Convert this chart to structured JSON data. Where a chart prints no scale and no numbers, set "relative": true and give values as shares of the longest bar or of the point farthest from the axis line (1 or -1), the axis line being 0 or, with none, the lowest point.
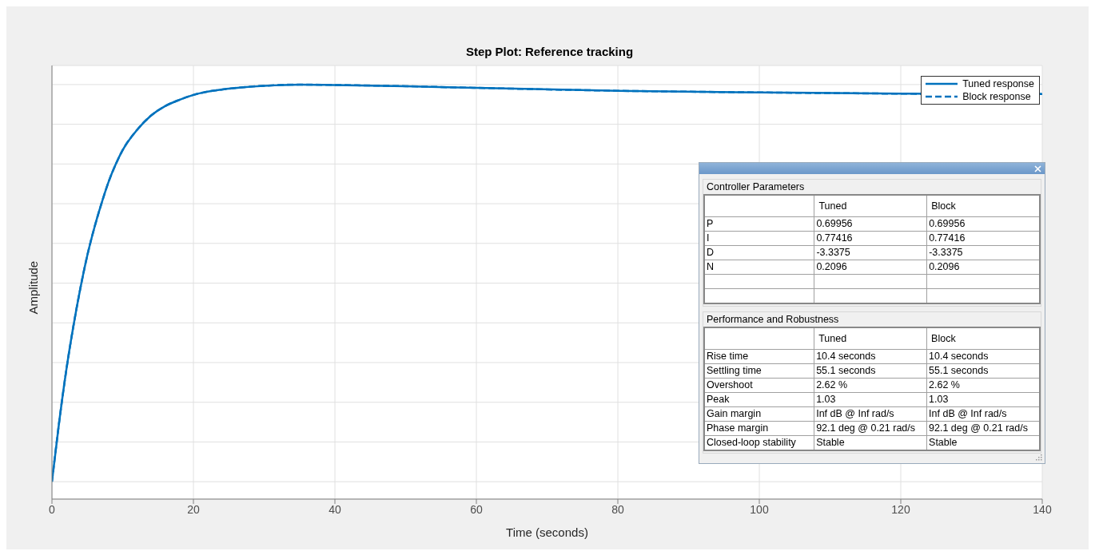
{
  "chart_data": [
    {
      "type": "line",
      "title": "Step Plot: Reference tracking",
      "xlabel": "Time (seconds)",
      "ylabel": "Amplitude",
      "relative": true,
      "x": [
        0,
        1,
        2,
        3,
        4,
        5,
        6,
        7,
        8,
        9,
        10,
        12,
        14,
        16,
        18,
        20,
        25,
        30,
        35,
        40,
        50,
        60,
        80,
        100,
        120,
        140
      ],
      "xlim": [
        0,
        140
      ],
      "xticks": [
        0,
        20,
        40,
        60,
        80,
        100,
        120,
        140
      ],
      "grid": true,
      "legend": "top right",
      "marker": "none",
      "series": [
        {
          "name": "Tuned response",
          "color": "#0072bd",
          "line_style": "solid",
          "values": [
            0.042,
            0.183,
            0.308,
            0.414,
            0.507,
            0.588,
            0.655,
            0.713,
            0.765,
            0.807,
            0.842,
            0.89,
            0.925,
            0.948,
            0.963,
            0.975,
            0.99,
            0.997,
            1,
            0.999,
            0.996,
            0.992,
            0.985,
            0.981,
            0.978,
            0.977
          ]
        },
        {
          "name": "Block response",
          "color": "#0072bd",
          "line_style": "dashed",
          "values": [
            0.042,
            0.183,
            0.308,
            0.414,
            0.507,
            0.588,
            0.655,
            0.713,
            0.765,
            0.807,
            0.842,
            0.89,
            0.925,
            0.948,
            0.963,
            0.975,
            0.99,
            0.997,
            1,
            0.999,
            0.996,
            0.992,
            0.985,
            0.981,
            0.978,
            0.977
          ]
        }
      ]
    },
    {
      "type": "other",
      "title": "Controller Parameters",
      "categories": [
        "Tuned",
        "Block"
      ],
      "y_categories": [
        "P",
        "I",
        "D",
        "N",
        null,
        null
      ],
      "cell_labels": [
        [
          "0.69956",
          "0.69956"
        ],
        [
          "0.77416",
          "0.77416"
        ],
        [
          "-3.3375",
          "-3.3375"
        ],
        [
          "0.2096",
          "0.2096"
        ],
        [
          null,
          null
        ],
        [
          null,
          null
        ]
      ]
    },
    {
      "type": "other",
      "title": "Performance and Robustness",
      "categories": [
        "Tuned",
        "Block"
      ],
      "y_categories": [
        "Rise time",
        "Settling time",
        "Overshoot",
        "Peak",
        "Gain margin",
        "Phase margin",
        "Closed-loop stability"
      ],
      "cell_labels": [
        [
          "10.4 seconds",
          "10.4 seconds"
        ],
        [
          "55.1 seconds",
          "55.1 seconds"
        ],
        [
          "2.62 %",
          "2.62 %"
        ],
        [
          "1.03",
          "1.03"
        ],
        [
          "Inf dB @ Inf rad/s",
          "Inf dB @ Inf rad/s"
        ],
        [
          "92.1 deg @ 0.21 rad/s",
          "92.1 deg @ 0.21 rad/s"
        ],
        [
          "Stable",
          "Stable"
        ]
      ]
    }
  ]
}
